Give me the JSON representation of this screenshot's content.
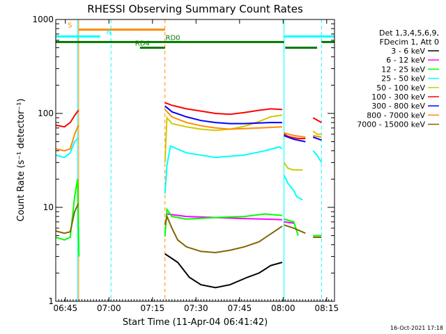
{
  "chart_data": {
    "type": "line",
    "title": "RHESSI Observing Summary Count Rates",
    "xlabel": "Start Time (11-Apr-04 06:41:42)",
    "ylabel": "Count Rate (s⁻¹ detector⁻¹)",
    "xlim_minutes": [
      0,
      96
    ],
    "ylim": [
      1,
      1000
    ],
    "yscale": "log",
    "x_ticks": [
      {
        "minute": 3.3,
        "label": "06:45"
      },
      {
        "minute": 18.3,
        "label": "07:00"
      },
      {
        "minute": 33.3,
        "label": "07:15"
      },
      {
        "minute": 48.3,
        "label": "07:30"
      },
      {
        "minute": 63.3,
        "label": "07:45"
      },
      {
        "minute": 78.3,
        "label": "08:00"
      },
      {
        "minute": 93.3,
        "label": "08:15"
      }
    ],
    "y_ticks": [
      {
        "value": 1,
        "label": "1"
      },
      {
        "value": 10,
        "label": "10"
      },
      {
        "value": 100,
        "label": "100"
      },
      {
        "value": 1000,
        "label": "1000"
      }
    ],
    "legend": {
      "position": "right",
      "header": [
        "Det 1,3,4,5,6,9,",
        "FDecim 1, Att 0"
      ]
    },
    "series": [
      {
        "name": "3 - 6 keV",
        "color": "#000000",
        "segments": [
          [
            [
              37.6,
              3.2
            ],
            [
              42,
              2.6
            ],
            [
              46,
              1.8
            ],
            [
              50,
              1.5
            ],
            [
              55,
              1.4
            ],
            [
              60,
              1.5
            ],
            [
              66,
              1.8
            ],
            [
              70,
              2.0
            ],
            [
              74,
              2.4
            ],
            [
              78,
              2.6
            ]
          ]
        ]
      },
      {
        "name": "6 - 12 keV",
        "color": "#ff00ff",
        "segments": [
          [
            [
              38.3,
              8.5
            ],
            [
              45,
              8.0
            ],
            [
              55,
              7.8
            ],
            [
              65,
              7.6
            ],
            [
              72,
              7.5
            ],
            [
              78,
              7.4
            ]
          ],
          [
            [
              78.6,
              7.0
            ],
            [
              82,
              6.8
            ]
          ]
        ]
      },
      {
        "name": "12 - 25 keV",
        "color": "#00ff00",
        "segments": [
          [
            [
              0,
              4.8
            ],
            [
              3,
              4.5
            ],
            [
              5,
              4.8
            ],
            [
              6.5,
              13
            ],
            [
              7.5,
              20
            ],
            [
              8,
              3.0
            ]
          ],
          [
            [
              37.6,
              4.9
            ],
            [
              38.3,
              9.5
            ],
            [
              40,
              8.0
            ],
            [
              45,
              7.5
            ],
            [
              55,
              7.8
            ],
            [
              65,
              8.0
            ],
            [
              72,
              8.5
            ],
            [
              78,
              8.2
            ]
          ],
          [
            [
              78.6,
              7.5
            ],
            [
              82,
              7.0
            ],
            [
              83.5,
              5.0
            ]
          ],
          [
            [
              88.6,
              5.0
            ],
            [
              91.5,
              5.0
            ]
          ]
        ]
      },
      {
        "name": "25 - 50 keV",
        "color": "#00ffff",
        "segments": [
          [
            [
              0,
              36
            ],
            [
              3,
              34
            ],
            [
              5,
              38
            ],
            [
              6.5,
              50
            ],
            [
              7.8,
              55
            ]
          ],
          [
            [
              37.6,
              14
            ],
            [
              38.3,
              28
            ],
            [
              39.5,
              45
            ],
            [
              45,
              38
            ],
            [
              55,
              34
            ],
            [
              65,
              36
            ],
            [
              72,
              40
            ],
            [
              77,
              44
            ],
            [
              78,
              42
            ]
          ],
          [
            [
              78.6,
              22
            ],
            [
              80,
              18
            ],
            [
              82,
              15
            ],
            [
              83,
              13
            ],
            [
              85,
              12
            ]
          ],
          [
            [
              88.6,
              40
            ],
            [
              90,
              36
            ],
            [
              91.5,
              30
            ]
          ]
        ]
      },
      {
        "name": "50 - 100 keV",
        "color": "#cccc00",
        "segments": [
          [
            [
              37.6,
              30
            ],
            [
              38.3,
              90
            ],
            [
              40,
              78
            ],
            [
              45,
              72
            ],
            [
              50,
              68
            ],
            [
              55,
              66
            ],
            [
              60,
              68
            ],
            [
              65,
              73
            ],
            [
              70,
              82
            ],
            [
              74,
              92
            ],
            [
              78,
              96
            ]
          ],
          [
            [
              78.6,
              30
            ],
            [
              80,
              26
            ],
            [
              82,
              25
            ],
            [
              85,
              25
            ]
          ],
          [
            [
              88.6,
              65
            ],
            [
              90,
              60
            ],
            [
              91.5,
              60
            ]
          ]
        ]
      },
      {
        "name": "100 - 300 keV",
        "color": "#ff0000",
        "segments": [
          [
            [
              0,
              75
            ],
            [
              3,
              72
            ],
            [
              5,
              80
            ],
            [
              6.5,
              95
            ],
            [
              7.8,
              108
            ]
          ],
          [
            [
              37.6,
              130
            ],
            [
              40,
              122
            ],
            [
              45,
              112
            ],
            [
              50,
              106
            ],
            [
              55,
              100
            ],
            [
              60,
              98
            ],
            [
              65,
              102
            ],
            [
              70,
              108
            ],
            [
              74,
              112
            ],
            [
              78,
              110
            ]
          ],
          [
            [
              78.6,
              60
            ],
            [
              80,
              57
            ],
            [
              82,
              55
            ],
            [
              84,
              54
            ],
            [
              86,
              54
            ]
          ],
          [
            [
              88.6,
              90
            ],
            [
              90,
              85
            ],
            [
              91.5,
              80
            ]
          ]
        ]
      },
      {
        "name": "300 - 800 keV",
        "color": "#0000ff",
        "segments": [
          [
            [
              37.6,
              120
            ],
            [
              40,
              104
            ],
            [
              45,
              92
            ],
            [
              50,
              84
            ],
            [
              55,
              80
            ],
            [
              60,
              78
            ],
            [
              65,
              78
            ],
            [
              70,
              79
            ],
            [
              74,
              80
            ],
            [
              78,
              80
            ]
          ],
          [
            [
              78.6,
              58
            ],
            [
              82,
              53
            ],
            [
              86,
              50
            ]
          ],
          [
            [
              88.6,
              56
            ],
            [
              90,
              54
            ],
            [
              91.5,
              52
            ]
          ]
        ]
      },
      {
        "name": "800 - 7000 keV",
        "color": "#ff8c00",
        "segments": [
          [
            [
              0,
              42
            ],
            [
              3,
              40
            ],
            [
              5,
              42
            ],
            [
              6.5,
              60
            ],
            [
              7.8,
              75
            ]
          ],
          [
            [
              37.6,
              110
            ],
            [
              40,
              92
            ],
            [
              45,
              80
            ],
            [
              50,
              74
            ],
            [
              55,
              70
            ],
            [
              60,
              68
            ],
            [
              65,
              69
            ],
            [
              70,
              70
            ],
            [
              74,
              71
            ],
            [
              78,
              72
            ]
          ],
          [
            [
              78.6,
              62
            ],
            [
              82,
              58
            ],
            [
              86,
              56
            ]
          ],
          [
            [
              88.6,
              58
            ],
            [
              90,
              57
            ],
            [
              91.5,
              56
            ]
          ]
        ]
      },
      {
        "name": "7000 - 15000 keV",
        "color": "#806600",
        "segments": [
          [
            [
              0,
              5.6
            ],
            [
              3,
              5.3
            ],
            [
              5,
              5.5
            ],
            [
              6.5,
              9
            ],
            [
              7.8,
              11
            ]
          ],
          [
            [
              37.6,
              6.5
            ],
            [
              38.3,
              8.0
            ],
            [
              40,
              6.0
            ],
            [
              42,
              4.5
            ],
            [
              45,
              3.8
            ],
            [
              50,
              3.4
            ],
            [
              55,
              3.3
            ],
            [
              60,
              3.5
            ],
            [
              65,
              3.8
            ],
            [
              70,
              4.3
            ],
            [
              74,
              5.2
            ],
            [
              78,
              6.3
            ]
          ],
          [
            [
              78.6,
              6.5
            ],
            [
              82,
              6.0
            ],
            [
              86,
              5.3
            ]
          ],
          [
            [
              88.6,
              4.8
            ],
            [
              91.5,
              4.8
            ]
          ]
        ]
      }
    ],
    "annotations": [
      {
        "label": "S",
        "color": "#ff8c00",
        "y": 780,
        "x_start": 7.9,
        "x_end": 37.6,
        "label_minute": 4.1
      },
      {
        "label": "N",
        "color": "#00ffff",
        "y": 660,
        "x_start": 0,
        "x_end": 15.3,
        "label_minute": 17.4
      },
      {
        "label": "N",
        "color": "#00ffff",
        "y": 660,
        "x_start": 78.6,
        "x_end": 96,
        "label_minute": null
      },
      {
        "label": "RD0",
        "color": "#007700",
        "y": 575,
        "x_start": 0,
        "x_end": 78.6,
        "label_minute": 37.8
      },
      {
        "label": "RD0",
        "color": "#007700",
        "y": 575,
        "x_start": 91.5,
        "x_end": 96,
        "label_minute": null
      },
      {
        "label": "RD4",
        "color": "#007700",
        "y": 500,
        "x_start": 29.0,
        "x_end": 37.6,
        "label_minute": 27.3
      },
      {
        "label": "RD4",
        "color": "#007700",
        "y": 500,
        "x_start": 79.0,
        "x_end": 90.0,
        "label_minute": null
      }
    ],
    "vertical_markers": [
      {
        "minute": 7.9,
        "color": "#ff8c00",
        "style": "solid"
      },
      {
        "minute": 7.5,
        "color": "#00ffff",
        "style": "solid"
      },
      {
        "minute": 19.0,
        "color": "#00ffff",
        "style": "dashed"
      },
      {
        "minute": 37.6,
        "color": "#ff8c00",
        "style": "dashed"
      },
      {
        "minute": 78.6,
        "color": "#00ffff",
        "style": "solid"
      },
      {
        "minute": 91.5,
        "color": "#00ffff",
        "style": "dashed"
      }
    ]
  },
  "footer": {
    "date_stamp": "16-Oct-2021 17:18"
  }
}
